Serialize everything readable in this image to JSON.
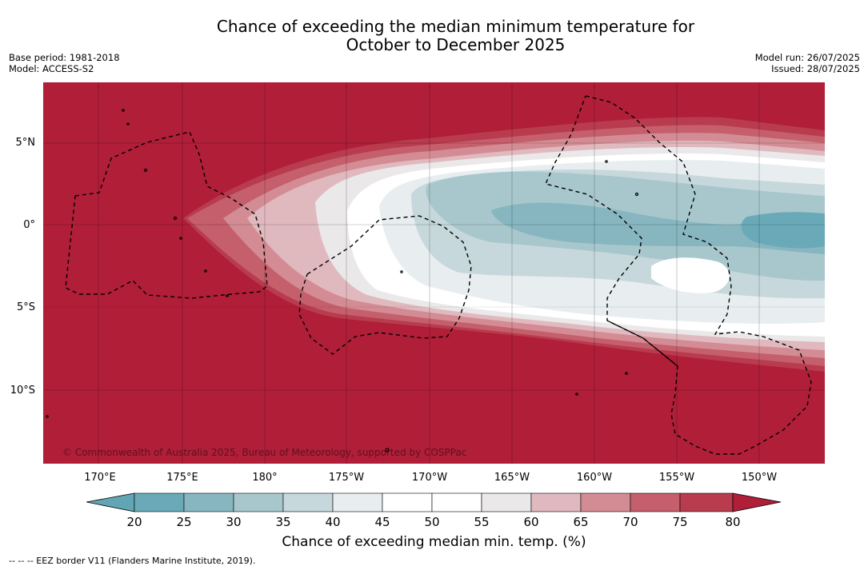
{
  "header": {
    "title_line1": "Chance of exceeding the median minimum temperature for",
    "title_line2": "October to December 2025",
    "base_period": "Base period: 1981-2018",
    "model": "Model: ACCESS-S2",
    "model_run": "Model run: 26/07/2025",
    "issued": "Issued: 28/07/2025"
  },
  "map": {
    "lat_labels": [
      "5°N",
      "0°",
      "5°S",
      "10°S"
    ],
    "lon_labels": [
      "170°E",
      "175°E",
      "180°",
      "175°W",
      "170°W",
      "165°W",
      "160°W",
      "155°W",
      "150°W"
    ],
    "copyright": "© Commonwealth of Australia 2025, Bureau of Meteorology, supported by COSPPac"
  },
  "colorbar": {
    "ticks": [
      "20",
      "25",
      "30",
      "35",
      "40",
      "45",
      "50",
      "55",
      "60",
      "65",
      "70",
      "75",
      "80"
    ],
    "colors": [
      "#62a5b4",
      "#6aaab8",
      "#87b6c1",
      "#a8c7cc",
      "#c6d8dc",
      "#e8eef0",
      "#ffffff",
      "#ffffff",
      "#ebe8e9",
      "#e0b9bf",
      "#d48c94",
      "#c55f6c",
      "#b83b4e",
      "#b01e38"
    ],
    "label": "Chance of exceeding median min. temp. (%)"
  },
  "legend": {
    "eez": "--  --  -- EEZ border V11 (Flanders Marine Institute, 2019)."
  }
}
